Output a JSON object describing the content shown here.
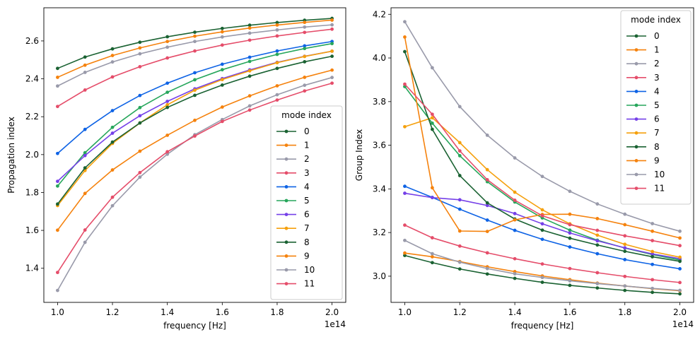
{
  "chart_data": [
    {
      "type": "line",
      "xlabel": "frequency [Hz]",
      "ylabel": "Propagation index",
      "offset_text": "1e14",
      "x": [
        1.0,
        1.1,
        1.2,
        1.3,
        1.4,
        1.5,
        1.6,
        1.7,
        1.8,
        1.9,
        2.0
      ],
      "xlim": [
        0.95,
        2.05
      ],
      "ylim": [
        1.22,
        2.775
      ],
      "xticks": [
        1.0,
        1.2,
        1.4,
        1.6,
        1.8,
        2.0
      ],
      "xtick_labels": [
        "1.0",
        "1.2",
        "1.4",
        "1.6",
        "1.8",
        "2.0"
      ],
      "yticks": [
        1.4,
        1.6,
        1.8,
        2.0,
        2.2,
        2.4,
        2.6
      ],
      "ytick_labels": [
        "1.4",
        "1.6",
        "1.8",
        "2.0",
        "2.2",
        "2.4",
        "2.6"
      ],
      "legend_title": "mode index",
      "legend_position": "lower-right",
      "series": [
        {
          "name": "0",
          "color": "#1a6232",
          "values": [
            2.455,
            2.515,
            2.558,
            2.593,
            2.622,
            2.646,
            2.666,
            2.683,
            2.697,
            2.709,
            2.719
          ]
        },
        {
          "name": "1",
          "color": "#f5820d",
          "values": [
            2.408,
            2.472,
            2.523,
            2.563,
            2.597,
            2.625,
            2.648,
            2.668,
            2.684,
            2.698,
            2.71
          ]
        },
        {
          "name": "2",
          "color": "#999aaa",
          "values": [
            2.362,
            2.434,
            2.489,
            2.532,
            2.567,
            2.597,
            2.621,
            2.641,
            2.658,
            2.673,
            2.685
          ]
        },
        {
          "name": "3",
          "color": "#e54d6a",
          "values": [
            2.254,
            2.341,
            2.41,
            2.464,
            2.51,
            2.547,
            2.578,
            2.604,
            2.626,
            2.645,
            2.662
          ]
        },
        {
          "name": "4",
          "color": "#0e63e5",
          "values": [
            2.006,
            2.133,
            2.232,
            2.312,
            2.377,
            2.432,
            2.477,
            2.514,
            2.547,
            2.574,
            2.597
          ]
        },
        {
          "name": "5",
          "color": "#26a65b",
          "values": [
            1.834,
            2.01,
            2.144,
            2.248,
            2.329,
            2.395,
            2.448,
            2.492,
            2.529,
            2.56,
            2.586
          ]
        },
        {
          "name": "6",
          "color": "#7540e8",
          "values": [
            1.859,
            1.995,
            2.113,
            2.205,
            2.281,
            2.347,
            2.401,
            2.447,
            2.487,
            2.519,
            2.546
          ]
        },
        {
          "name": "7",
          "color": "#f5a00d",
          "values": [
            1.731,
            1.916,
            2.059,
            2.167,
            2.263,
            2.34,
            2.396,
            2.442,
            2.485,
            2.518,
            2.546
          ]
        },
        {
          "name": "8",
          "color": "#1a6232",
          "values": [
            1.739,
            1.93,
            2.066,
            2.167,
            2.249,
            2.313,
            2.367,
            2.414,
            2.455,
            2.49,
            2.519
          ]
        },
        {
          "name": "9",
          "color": "#f5820d",
          "values": [
            1.601,
            1.795,
            1.919,
            2.018,
            2.102,
            2.181,
            2.251,
            2.31,
            2.363,
            2.408,
            2.446
          ]
        },
        {
          "name": "10",
          "color": "#999aaa",
          "values": [
            1.283,
            1.537,
            1.73,
            1.881,
            2.002,
            2.105,
            2.185,
            2.257,
            2.316,
            2.366,
            2.407
          ]
        },
        {
          "name": "11",
          "color": "#e54d6a",
          "values": [
            1.378,
            1.602,
            1.775,
            1.905,
            2.015,
            2.098,
            2.175,
            2.235,
            2.288,
            2.336,
            2.377
          ]
        }
      ]
    },
    {
      "type": "line",
      "xlabel": "frequency [Hz]",
      "ylabel": "Group Index",
      "offset_text": "1e14",
      "x": [
        1.0,
        1.1,
        1.2,
        1.3,
        1.4,
        1.5,
        1.6,
        1.7,
        1.8,
        1.9,
        2.0
      ],
      "xlim": [
        0.95,
        2.05
      ],
      "ylim": [
        2.88,
        4.23
      ],
      "xticks": [
        1.0,
        1.2,
        1.4,
        1.6,
        1.8,
        2.0
      ],
      "xtick_labels": [
        "1.0",
        "1.2",
        "1.4",
        "1.6",
        "1.8",
        "2.0"
      ],
      "yticks": [
        3.0,
        3.2,
        3.4,
        3.6,
        3.8,
        4.0,
        4.2
      ],
      "ytick_labels": [
        "3.0",
        "3.2",
        "3.4",
        "3.6",
        "3.8",
        "4.0",
        "4.2"
      ],
      "legend_title": "mode index",
      "legend_position": "upper-right",
      "series": [
        {
          "name": "0",
          "color": "#1a6232",
          "values": [
            3.095,
            3.062,
            3.033,
            3.01,
            2.99,
            2.972,
            2.958,
            2.946,
            2.935,
            2.926,
            2.919
          ]
        },
        {
          "name": "1",
          "color": "#f5820d",
          "values": [
            3.106,
            3.089,
            3.067,
            3.043,
            3.021,
            3.001,
            2.984,
            2.968,
            2.955,
            2.943,
            2.933
          ]
        },
        {
          "name": "2",
          "color": "#999aaa",
          "values": [
            3.164,
            3.103,
            3.064,
            3.035,
            3.011,
            2.994,
            2.979,
            2.966,
            2.955,
            2.944,
            2.935
          ]
        },
        {
          "name": "3",
          "color": "#e54d6a",
          "values": [
            3.234,
            3.176,
            3.138,
            3.107,
            3.08,
            3.056,
            3.035,
            3.016,
            2.999,
            2.984,
            2.971
          ]
        },
        {
          "name": "4",
          "color": "#0e63e5",
          "values": [
            3.412,
            3.361,
            3.307,
            3.257,
            3.21,
            3.169,
            3.134,
            3.103,
            3.076,
            3.054,
            3.034
          ]
        },
        {
          "name": "5",
          "color": "#26a65b",
          "values": [
            3.869,
            3.701,
            3.552,
            3.433,
            3.34,
            3.267,
            3.211,
            3.165,
            3.129,
            3.099,
            3.074
          ]
        },
        {
          "name": "6",
          "color": "#7540e8",
          "values": [
            3.38,
            3.36,
            3.35,
            3.324,
            3.287,
            3.24,
            3.198,
            3.162,
            3.13,
            3.102,
            3.08
          ]
        },
        {
          "name": "7",
          "color": "#f5a00d",
          "values": [
            3.685,
            3.726,
            3.612,
            3.488,
            3.385,
            3.304,
            3.24,
            3.188,
            3.146,
            3.113,
            3.087
          ]
        },
        {
          "name": "8",
          "color": "#1a6232",
          "values": [
            4.029,
            3.673,
            3.461,
            3.336,
            3.262,
            3.211,
            3.174,
            3.143,
            3.114,
            3.089,
            3.068
          ]
        },
        {
          "name": "9",
          "color": "#f5820d",
          "values": [
            4.096,
            3.405,
            3.207,
            3.205,
            3.258,
            3.283,
            3.284,
            3.264,
            3.236,
            3.206,
            3.175
          ]
        },
        {
          "name": "10",
          "color": "#999aaa",
          "values": [
            4.166,
            3.955,
            3.777,
            3.646,
            3.542,
            3.457,
            3.389,
            3.331,
            3.284,
            3.241,
            3.206
          ]
        },
        {
          "name": "11",
          "color": "#e54d6a",
          "values": [
            3.88,
            3.742,
            3.574,
            3.442,
            3.348,
            3.277,
            3.236,
            3.21,
            3.185,
            3.163,
            3.14
          ]
        }
      ]
    }
  ]
}
